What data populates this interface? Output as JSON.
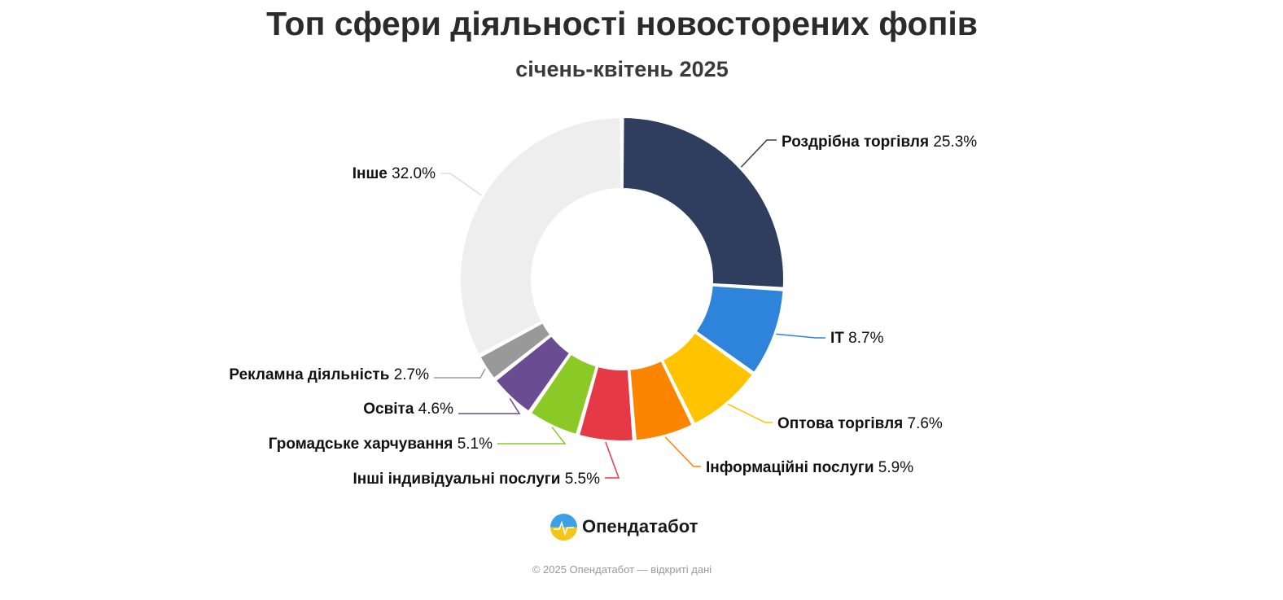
{
  "chart_data": {
    "type": "pie",
    "title": "Топ сфери діяльності новосторених фопів",
    "subtitle": "січень-квітень 2025",
    "legend": "none",
    "categories": [
      "Роздрібна торгівля",
      "IT",
      "Оптова торгівля",
      "Інформаційні послуги",
      "Інші індивідуальні послуги",
      "Громадське харчування",
      "Освіта",
      "Рекламна діяльність",
      "Інше"
    ],
    "values": [
      25.3,
      8.7,
      7.6,
      5.9,
      5.5,
      5.1,
      4.6,
      2.7,
      32.0
    ],
    "value_labels": [
      "25.3%",
      "8.7%",
      "7.6%",
      "5.9%",
      "5.5%",
      "5.1%",
      "4.6%",
      "2.7%",
      "32.0%"
    ],
    "colors": [
      "#2f3e5e",
      "#2e83da",
      "#ffc300",
      "#fb8500",
      "#e63946",
      "#8ac926",
      "#6a4c93",
      "#999999",
      "#eeeeee"
    ]
  },
  "brand": {
    "name": "Опендатабот",
    "icon": "opendatabot-logo-icon"
  },
  "footer": {
    "text": "© 2025 Опендатабот — відкриті дані"
  }
}
